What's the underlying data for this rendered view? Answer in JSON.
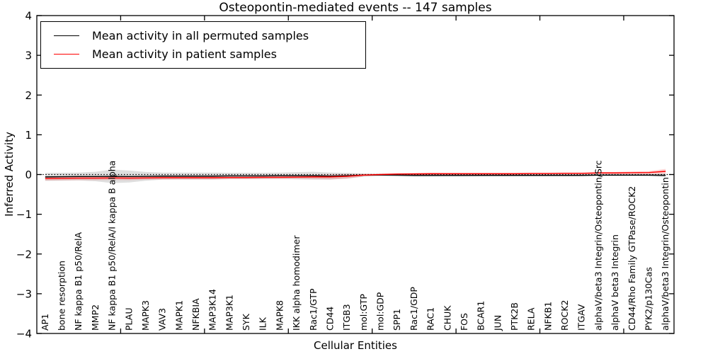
{
  "chart_data": {
    "type": "line",
    "title": "Osteopontin-mediated events -- 147 samples",
    "xlabel": "Cellular Entities",
    "ylabel": "Inferred Activity",
    "ylim": [
      -4,
      4
    ],
    "ytick_labels": [
      "4",
      "3",
      "2",
      "1",
      "0",
      "−1",
      "−2",
      "−3",
      "−4"
    ],
    "ytick_values": [
      4,
      3,
      2,
      1,
      0,
      -1,
      -2,
      -3,
      -4
    ],
    "xtick_values": [
      5,
      10,
      15,
      20,
      25,
      30,
      35
    ],
    "grid": false,
    "legend_position": "upper left",
    "zero_line_style": "dotted",
    "categories": [
      "AP1",
      "bone resorption",
      "NF kappa B1 p50/RelA",
      "MMP2",
      "NF kappa B1 p50/RelA/I kappa B alpha",
      "PLAU",
      "MAPK3",
      "VAV3",
      "MAPK1",
      "NFKBIA",
      "MAP3K14",
      "MAP3K1",
      "SYK",
      "ILK",
      "MAPK8",
      "IKK alpha homodimer",
      "Rac1/GTP",
      "CD44",
      "ITGB3",
      "mol:GTP",
      "mol:GDP",
      "SPP1",
      "Rac1/GDP",
      "RAC1",
      "CHUK",
      "FOS",
      "BCAR1",
      "JUN",
      "PTK2B",
      "RELA",
      "NFKB1",
      "ROCK2",
      "ITGAV",
      "alphaV/beta3 Integrin/Osteopontin/Src",
      "alphaV beta3 Integrin",
      "CD44/Rho Family GTPase/ROCK2",
      "PYK2/p130Cas",
      "alphaV/beta3 Integrin/Osteopontin"
    ],
    "series": [
      {
        "name": "Mean activity in all permuted samples",
        "color": "#000000",
        "band_color": "rgba(150,150,150,0.30)",
        "values": [
          -0.06,
          -0.055,
          -0.05,
          -0.05,
          -0.045,
          -0.05,
          -0.045,
          -0.04,
          -0.04,
          -0.04,
          -0.04,
          -0.035,
          -0.035,
          -0.035,
          -0.03,
          -0.03,
          -0.03,
          -0.04,
          -0.03,
          -0.015,
          -0.01,
          -0.015,
          -0.02,
          -0.02,
          -0.02,
          -0.02,
          -0.02,
          -0.02,
          -0.02,
          -0.02,
          -0.02,
          -0.02,
          -0.02,
          -0.015,
          -0.015,
          -0.015,
          -0.015,
          -0.02
        ],
        "band": [
          0.1,
          0.1,
          0.1,
          0.12,
          0.17,
          0.15,
          0.11,
          0.09,
          0.09,
          0.09,
          0.09,
          0.08,
          0.08,
          0.08,
          0.08,
          0.09,
          0.1,
          0.09,
          0.07,
          0.04,
          0.03,
          0.04,
          0.04,
          0.04,
          0.035,
          0.035,
          0.03,
          0.03,
          0.03,
          0.03,
          0.03,
          0.03,
          0.03,
          0.03,
          0.03,
          0.03,
          0.035,
          0.05
        ]
      },
      {
        "name": "Mean activity in patient samples",
        "color": "#ff0000",
        "band_color": "rgba(255,0,0,0.18)",
        "values": [
          -0.1,
          -0.095,
          -0.09,
          -0.09,
          -0.085,
          -0.09,
          -0.085,
          -0.08,
          -0.08,
          -0.08,
          -0.08,
          -0.075,
          -0.075,
          -0.07,
          -0.07,
          -0.065,
          -0.06,
          -0.06,
          -0.045,
          -0.015,
          0.0,
          0.01,
          0.015,
          0.02,
          0.02,
          0.02,
          0.02,
          0.02,
          0.02,
          0.025,
          0.025,
          0.03,
          0.03,
          0.04,
          0.04,
          0.045,
          0.05,
          0.08
        ],
        "band": [
          0.05,
          0.05,
          0.05,
          0.05,
          0.05,
          0.05,
          0.045,
          0.045,
          0.04,
          0.04,
          0.04,
          0.04,
          0.04,
          0.04,
          0.04,
          0.04,
          0.05,
          0.06,
          0.06,
          0.03,
          0.02,
          0.03,
          0.03,
          0.025,
          0.02,
          0.02,
          0.02,
          0.02,
          0.02,
          0.02,
          0.02,
          0.02,
          0.02,
          0.025,
          0.025,
          0.03,
          0.035,
          0.06
        ]
      }
    ]
  }
}
